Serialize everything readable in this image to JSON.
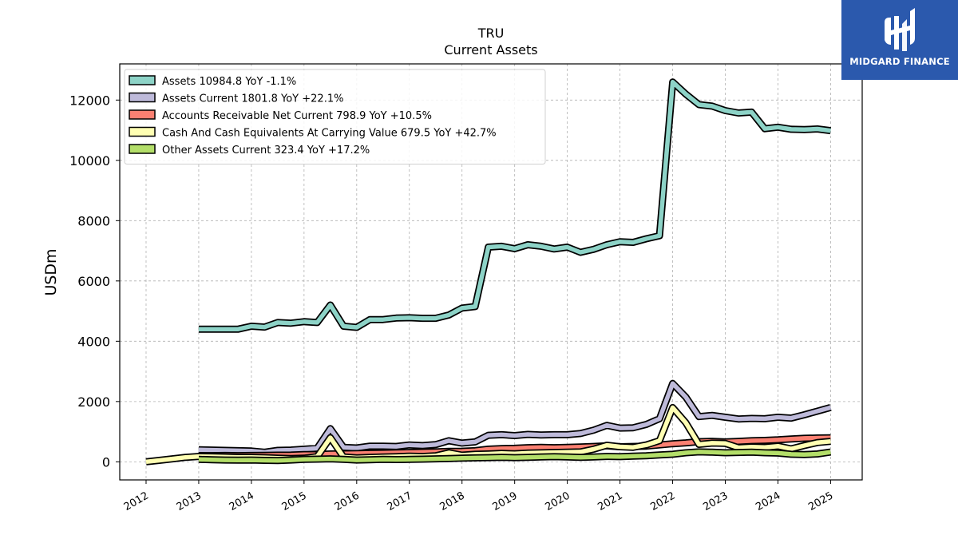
{
  "chart_data": {
    "type": "line",
    "title": "TRU",
    "subtitle": "Current  Assets",
    "ylabel": "USDm",
    "xlabel": "",
    "xlim": [
      2011.5,
      2025.6
    ],
    "ylim": [
      -600,
      13200
    ],
    "yticks": [
      0,
      2000,
      4000,
      6000,
      8000,
      10000,
      12000
    ],
    "xticks": [
      "2012",
      "2013",
      "2014",
      "2015",
      "2016",
      "2017",
      "2018",
      "2019",
      "2020",
      "2021",
      "2022",
      "2023",
      "2024",
      "2025"
    ],
    "grid": true,
    "legend_position": "top-left",
    "series": [
      {
        "name": "Assets",
        "legend": "Assets  10984.8 YoY -1.1%",
        "color": "#8dd3c7",
        "x": [
          2013.0,
          2013.25,
          2013.5,
          2013.75,
          2014.0,
          2014.25,
          2014.5,
          2014.75,
          2015.0,
          2015.25,
          2015.5,
          2015.75,
          2016.0,
          2016.25,
          2016.5,
          2016.75,
          2017.0,
          2017.25,
          2017.5,
          2017.75,
          2018.0,
          2018.25,
          2018.5,
          2018.75,
          2019.0,
          2019.25,
          2019.5,
          2019.75,
          2020.0,
          2020.25,
          2020.5,
          2020.75,
          2021.0,
          2021.25,
          2021.5,
          2021.75,
          2022.0,
          2022.25,
          2022.5,
          2022.75,
          2023.0,
          2023.25,
          2023.5,
          2023.75,
          2024.0,
          2024.25,
          2024.5,
          2024.75,
          2025.0
        ],
        "y": [
          4400,
          4400,
          4400,
          4400,
          4500,
          4470,
          4620,
          4600,
          4650,
          4620,
          5200,
          4500,
          4460,
          4720,
          4720,
          4770,
          4780,
          4760,
          4760,
          4870,
          5100,
          5150,
          7120,
          7150,
          7070,
          7200,
          7150,
          7060,
          7120,
          6950,
          7050,
          7200,
          7300,
          7280,
          7400,
          7500,
          12600,
          12200,
          11850,
          11800,
          11650,
          11570,
          11600,
          11050,
          11100,
          11030,
          11020,
          11040,
          10984.8
        ]
      },
      {
        "name": "Assets Current",
        "legend": "Assets Current  1801.8 YoY +22.1%",
        "color": "#bebada",
        "x": [
          2013.0,
          2013.25,
          2013.5,
          2013.75,
          2014.0,
          2014.25,
          2014.5,
          2014.75,
          2015.0,
          2015.25,
          2015.5,
          2015.75,
          2016.0,
          2016.25,
          2016.5,
          2016.75,
          2017.0,
          2017.25,
          2017.5,
          2017.75,
          2018.0,
          2018.25,
          2018.5,
          2018.75,
          2019.0,
          2019.25,
          2019.5,
          2019.75,
          2020.0,
          2020.25,
          2020.5,
          2020.75,
          2021.0,
          2021.25,
          2021.5,
          2021.75,
          2022.0,
          2022.25,
          2022.5,
          2022.75,
          2023.0,
          2023.25,
          2023.5,
          2023.75,
          2024.0,
          2024.25,
          2024.5,
          2024.75,
          2025.0
        ],
        "y": [
          400,
          390,
          380,
          370,
          360,
          320,
          380,
          390,
          420,
          450,
          1100,
          480,
          460,
          520,
          520,
          510,
          560,
          540,
          570,
          700,
          620,
          660,
          880,
          900,
          870,
          910,
          890,
          900,
          900,
          940,
          1050,
          1210,
          1120,
          1130,
          1240,
          1430,
          2600,
          2150,
          1500,
          1540,
          1480,
          1420,
          1440,
          1430,
          1480,
          1450,
          1560,
          1680,
          1801.8
        ]
      },
      {
        "name": "Accounts Receivable Net Current",
        "legend": "Accounts Receivable Net Current  798.9 YoY +10.5%",
        "color": "#fb8072",
        "x": [
          2013.0,
          2013.25,
          2013.5,
          2013.75,
          2014.0,
          2014.25,
          2014.5,
          2014.75,
          2015.0,
          2015.25,
          2015.5,
          2015.75,
          2016.0,
          2016.25,
          2016.5,
          2016.75,
          2017.0,
          2017.25,
          2017.5,
          2017.75,
          2018.0,
          2018.25,
          2018.5,
          2018.75,
          2019.0,
          2019.25,
          2019.5,
          2019.75,
          2020.0,
          2020.25,
          2020.5,
          2020.75,
          2021.0,
          2021.25,
          2021.5,
          2021.75,
          2022.0,
          2022.25,
          2022.5,
          2022.75,
          2023.0,
          2023.25,
          2023.5,
          2023.75,
          2024.0,
          2024.25,
          2024.5,
          2024.75,
          2025.0
        ],
        "y": [
          200,
          205,
          210,
          205,
          210,
          215,
          220,
          225,
          240,
          245,
          260,
          270,
          275,
          285,
          290,
          300,
          310,
          320,
          330,
          345,
          350,
          370,
          420,
          440,
          450,
          470,
          480,
          470,
          480,
          490,
          510,
          530,
          500,
          510,
          520,
          560,
          600,
          630,
          670,
          680,
          660,
          680,
          700,
          710,
          730,
          760,
          780,
          790,
          798.9
        ]
      },
      {
        "name": "Cash And Cash Equivalents At Carrying Value",
        "legend": "Cash And Cash Equivalents At Carrying Value  679.5 YoY +42.7%",
        "color": "#ffffb3",
        "x": [
          2012.0,
          2012.25,
          2012.5,
          2012.75,
          2013.0,
          2013.25,
          2013.5,
          2013.75,
          2014.0,
          2014.25,
          2014.5,
          2014.75,
          2015.0,
          2015.25,
          2015.5,
          2015.75,
          2016.0,
          2016.25,
          2016.5,
          2016.75,
          2017.0,
          2017.25,
          2017.5,
          2017.75,
          2018.0,
          2018.25,
          2018.5,
          2018.75,
          2019.0,
          2019.25,
          2019.5,
          2019.75,
          2020.0,
          2020.25,
          2020.5,
          2020.75,
          2021.0,
          2021.25,
          2021.5,
          2021.75,
          2022.0,
          2022.25,
          2022.5,
          2022.75,
          2023.0,
          2023.25,
          2023.5,
          2023.75,
          2024.0,
          2024.25,
          2024.5,
          2024.75,
          2025.0
        ],
        "y": [
          0,
          50,
          100,
          150,
          180,
          170,
          160,
          150,
          150,
          140,
          120,
          110,
          120,
          170,
          800,
          160,
          130,
          150,
          160,
          170,
          190,
          180,
          200,
          300,
          220,
          250,
          260,
          280,
          270,
          290,
          300,
          310,
          320,
          330,
          420,
          550,
          500,
          480,
          560,
          700,
          1800,
          1300,
          580,
          620,
          610,
          470,
          490,
          480,
          520,
          430,
          540,
          640,
          679.5
        ]
      },
      {
        "name": "Other Assets Current",
        "legend": "Other Assets Current  323.4 YoY +17.2%",
        "color": "#b3de69",
        "x": [
          2013.0,
          2013.25,
          2013.5,
          2013.75,
          2014.0,
          2014.25,
          2014.5,
          2014.75,
          2015.0,
          2015.25,
          2015.5,
          2015.75,
          2016.0,
          2016.25,
          2016.5,
          2016.75,
          2017.0,
          2017.25,
          2017.5,
          2017.75,
          2018.0,
          2018.25,
          2018.5,
          2018.75,
          2019.0,
          2019.25,
          2019.5,
          2019.75,
          2020.0,
          2020.25,
          2020.5,
          2020.75,
          2021.0,
          2021.25,
          2021.5,
          2021.75,
          2022.0,
          2022.25,
          2022.5,
          2022.75,
          2023.0,
          2023.25,
          2023.5,
          2023.75,
          2024.0,
          2024.25,
          2024.5,
          2024.75,
          2025.0
        ],
        "y": [
          80,
          70,
          60,
          55,
          60,
          50,
          40,
          60,
          80,
          90,
          100,
          80,
          60,
          70,
          80,
          75,
          80,
          90,
          100,
          110,
          120,
          130,
          140,
          150,
          140,
          150,
          160,
          170,
          160,
          150,
          160,
          180,
          170,
          190,
          200,
          230,
          250,
          300,
          330,
          320,
          300,
          310,
          320,
          300,
          290,
          250,
          240,
          260,
          323.4
        ]
      }
    ]
  },
  "logo": {
    "text": "MIDGARD FINANCE",
    "bg_color": "#2b59ad",
    "icon": "midgard-logo-icon"
  }
}
